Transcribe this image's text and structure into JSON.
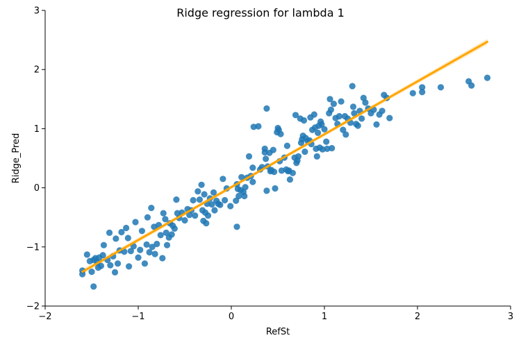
{
  "chart_data": {
    "type": "scatter",
    "title": "Ridge regression for lambda 1",
    "xlabel": "RefSt",
    "ylabel": "Ridge_Pred",
    "xlim": [
      -2,
      3
    ],
    "ylim": [
      -2,
      3
    ],
    "xticks": [
      -2,
      -1,
      0,
      1,
      2,
      3
    ],
    "yticks": [
      -2,
      -1,
      0,
      1,
      2,
      3
    ],
    "grid": false,
    "colors": {
      "points": "#1f77b4",
      "fit_line": "#ffa500",
      "confidence_band": "#ffe3b3"
    },
    "regression_line": {
      "x": [
        -1.6,
        2.75
      ],
      "y": [
        -1.42,
        2.47
      ]
    },
    "points": [
      [
        -1.6,
        -1.4
      ],
      [
        -1.6,
        -1.46
      ],
      [
        -1.55,
        -1.13
      ],
      [
        -1.52,
        -1.24
      ],
      [
        -1.5,
        -1.42
      ],
      [
        -1.48,
        -1.67
      ],
      [
        -1.48,
        -1.22
      ],
      [
        -1.46,
        -1.19
      ],
      [
        -1.44,
        -1.26
      ],
      [
        -1.43,
        -1.35
      ],
      [
        -1.42,
        -1.18
      ],
      [
        -1.4,
        -1.32
      ],
      [
        -1.38,
        -1.14
      ],
      [
        -1.37,
        -0.97
      ],
      [
        -1.33,
        -1.22
      ],
      [
        -1.31,
        -0.76
      ],
      [
        -1.3,
        -1.31
      ],
      [
        -1.27,
        -1.16
      ],
      [
        -1.25,
        -1.43
      ],
      [
        -1.24,
        -0.86
      ],
      [
        -1.22,
        -1.28
      ],
      [
        -1.2,
        -1.06
      ],
      [
        -1.18,
        -0.75
      ],
      [
        -1.15,
        -1.08
      ],
      [
        -1.13,
        -0.68
      ],
      [
        -1.11,
        -0.85
      ],
      [
        -1.1,
        -1.33
      ],
      [
        -1.08,
        -1.07
      ],
      [
        -1.05,
        -0.99
      ],
      [
        -1.03,
        -0.58
      ],
      [
        -1.0,
        -1.18
      ],
      [
        -0.98,
        -1.05
      ],
      [
        -0.96,
        -0.73
      ],
      [
        -0.93,
        -1.28
      ],
      [
        -0.91,
        -0.96
      ],
      [
        -0.9,
        -0.5
      ],
      [
        -0.88,
        -1.09
      ],
      [
        -0.86,
        -0.34
      ],
      [
        -0.85,
        -1.0
      ],
      [
        -0.83,
        -0.66
      ],
      [
        -0.82,
        -1.12
      ],
      [
        -0.8,
        -0.95
      ],
      [
        -0.78,
        -0.63
      ],
      [
        -0.76,
        -0.8
      ],
      [
        -0.74,
        -1.19
      ],
      [
        -0.73,
        -0.43
      ],
      [
        -0.71,
        -0.53
      ],
      [
        -0.7,
        -0.76
      ],
      [
        -0.69,
        -0.97
      ],
      [
        -0.67,
        -0.84
      ],
      [
        -0.66,
        -0.6
      ],
      [
        -0.64,
        -0.79
      ],
      [
        -0.63,
        -0.64
      ],
      [
        -0.61,
        -0.69
      ],
      [
        -0.59,
        -0.2
      ],
      [
        -0.58,
        -0.43
      ],
      [
        -0.56,
        -0.51
      ],
      [
        -0.53,
        -0.42
      ],
      [
        -0.5,
        -0.55
      ],
      [
        -0.47,
        -0.36
      ],
      [
        -0.45,
        -0.46
      ],
      [
        -0.43,
        -0.38
      ],
      [
        -0.41,
        -0.21
      ],
      [
        -0.39,
        -0.47
      ],
      [
        -0.36,
        -0.06
      ],
      [
        -0.34,
        -0.2
      ],
      [
        -0.32,
        0.05
      ],
      [
        -0.31,
        -0.38
      ],
      [
        -0.3,
        -0.56
      ],
      [
        -0.29,
        -0.11
      ],
      [
        -0.28,
        -0.42
      ],
      [
        -0.27,
        -0.6
      ],
      [
        -0.26,
        -0.27
      ],
      [
        -0.25,
        -0.47
      ],
      [
        -0.23,
        -0.18
      ],
      [
        -0.21,
        -0.28
      ],
      [
        -0.19,
        -0.08
      ],
      [
        -0.18,
        -0.38
      ],
      [
        -0.16,
        -0.22
      ],
      [
        -0.14,
        -0.27
      ],
      [
        -0.12,
        -0.29
      ],
      [
        -0.09,
        0.15
      ],
      [
        -0.07,
        -0.21
      ],
      [
        -0.05,
        -0.01
      ],
      [
        -0.01,
        -0.31
      ],
      [
        0.05,
        -0.22
      ],
      [
        0.06,
        -0.66
      ],
      [
        0.06,
        0.06
      ],
      [
        0.07,
        -0.02
      ],
      [
        0.08,
        -0.14
      ],
      [
        0.1,
        -0.04
      ],
      [
        0.11,
        0.18
      ],
      [
        0.13,
        -0.07
      ],
      [
        0.14,
        -0.14
      ],
      [
        0.15,
        0.01
      ],
      [
        0.17,
        0.17
      ],
      [
        0.19,
        0.53
      ],
      [
        0.21,
        0.2
      ],
      [
        0.23,
        0.34
      ],
      [
        0.23,
        0.1
      ],
      [
        0.24,
        1.03
      ],
      [
        0.29,
        1.04
      ],
      [
        0.31,
        0.31
      ],
      [
        0.33,
        0.35
      ],
      [
        0.36,
        0.66
      ],
      [
        0.36,
        0.6
      ],
      [
        0.37,
        0.49
      ],
      [
        0.38,
        1.34
      ],
      [
        0.38,
        -0.05
      ],
      [
        0.39,
        0.36
      ],
      [
        0.41,
        0.59
      ],
      [
        0.42,
        0.28
      ],
      [
        0.43,
        0.3
      ],
      [
        0.45,
        0.64
      ],
      [
        0.46,
        0.27
      ],
      [
        0.47,
        -0.01
      ],
      [
        0.49,
        0.94
      ],
      [
        0.5,
        1.01
      ],
      [
        0.51,
        0.98
      ],
      [
        0.52,
        0.45
      ],
      [
        0.53,
        0.91
      ],
      [
        0.54,
        0.29
      ],
      [
        0.57,
        0.51
      ],
      [
        0.59,
        0.31
      ],
      [
        0.6,
        0.71
      ],
      [
        0.61,
        0.28
      ],
      [
        0.62,
        0.29
      ],
      [
        0.63,
        0.14
      ],
      [
        0.66,
        0.25
      ],
      [
        0.68,
        0.51
      ],
      [
        0.69,
        1.23
      ],
      [
        0.7,
        0.42
      ],
      [
        0.71,
        0.46
      ],
      [
        0.72,
        0.53
      ],
      [
        0.74,
        1.17
      ],
      [
        0.75,
        0.76
      ],
      [
        0.76,
        0.82
      ],
      [
        0.77,
        0.88
      ],
      [
        0.78,
        1.14
      ],
      [
        0.79,
        0.61
      ],
      [
        0.8,
        0.84
      ],
      [
        0.82,
        0.79
      ],
      [
        0.84,
        0.8
      ],
      [
        0.85,
        1.19
      ],
      [
        0.86,
        0.74
      ],
      [
        0.87,
        0.98
      ],
      [
        0.89,
        1.24
      ],
      [
        0.9,
        1.02
      ],
      [
        0.91,
        0.66
      ],
      [
        0.92,
        0.53
      ],
      [
        0.93,
        0.93
      ],
      [
        0.94,
        1.05
      ],
      [
        0.95,
        0.68
      ],
      [
        0.96,
        1.12
      ],
      [
        0.97,
        1.07
      ],
      [
        0.98,
        0.65
      ],
      [
        1.0,
        0.99
      ],
      [
        1.02,
        0.78
      ],
      [
        1.03,
        0.66
      ],
      [
        1.05,
        1.26
      ],
      [
        1.06,
        1.5
      ],
      [
        1.07,
        1.32
      ],
      [
        1.08,
        0.67
      ],
      [
        1.1,
        1.42
      ],
      [
        1.12,
        1.18
      ],
      [
        1.14,
        1.08
      ],
      [
        1.16,
        1.21
      ],
      [
        1.18,
        1.46
      ],
      [
        1.2,
        0.98
      ],
      [
        1.22,
        1.21
      ],
      [
        1.23,
        0.9
      ],
      [
        1.25,
        1.17
      ],
      [
        1.28,
        1.1
      ],
      [
        1.3,
        1.72
      ],
      [
        1.31,
        1.37
      ],
      [
        1.32,
        1.26
      ],
      [
        1.34,
        1.08
      ],
      [
        1.36,
        1.05
      ],
      [
        1.38,
        1.3
      ],
      [
        1.4,
        1.17
      ],
      [
        1.42,
        1.52
      ],
      [
        1.44,
        1.44
      ],
      [
        1.47,
        1.34
      ],
      [
        1.5,
        1.26
      ],
      [
        1.53,
        1.32
      ],
      [
        1.56,
        1.07
      ],
      [
        1.59,
        1.24
      ],
      [
        1.62,
        1.3
      ],
      [
        1.64,
        1.57
      ],
      [
        1.67,
        1.52
      ],
      [
        1.7,
        1.18
      ],
      [
        1.95,
        1.6
      ],
      [
        2.05,
        1.62
      ],
      [
        2.05,
        1.7
      ],
      [
        2.25,
        1.7
      ],
      [
        2.55,
        1.8
      ],
      [
        2.58,
        1.73
      ],
      [
        2.75,
        1.86
      ]
    ]
  }
}
